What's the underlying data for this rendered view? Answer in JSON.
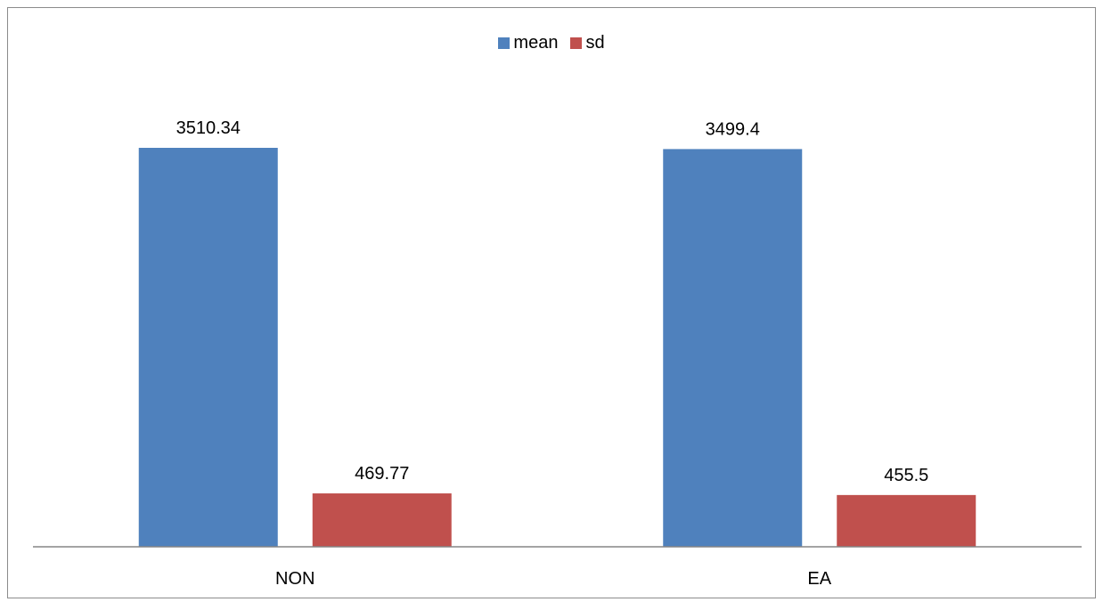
{
  "chart_data": {
    "type": "bar",
    "categories": [
      "NON",
      "EA"
    ],
    "series": [
      {
        "name": "mean",
        "values": [
          3510.34,
          3499.4
        ],
        "labels": [
          "3510.34",
          "3499.4"
        ],
        "color": "#4F81BD"
      },
      {
        "name": "sd",
        "values": [
          469.77,
          455.5
        ],
        "labels": [
          "469.77",
          "455.5"
        ],
        "color": "#C0504D"
      }
    ],
    "title": "",
    "xlabel": "",
    "ylabel": "",
    "ylim": [
      0,
      3900
    ],
    "grid": false,
    "legend_position": "top-center",
    "axis_color": "#868686"
  }
}
